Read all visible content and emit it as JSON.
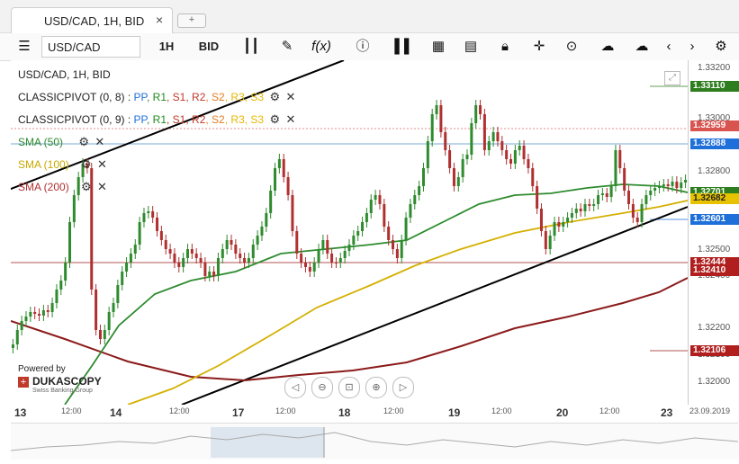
{
  "tab": {
    "title": "USD/CAD, 1H, BID",
    "close": "×",
    "add": "+"
  },
  "toolbar": {
    "symbol": "USD/CAD",
    "period": "1H",
    "side": "BID",
    "icons": [
      "menu-icon",
      "candles-icon",
      "pencil-icon",
      "fx-icon",
      "info-icon",
      "bars-icon",
      "calendar-icon",
      "calculator-icon",
      "lock-icon",
      "crosshair-icon",
      "zoom-icon",
      "upload-icon",
      "download-icon",
      "prev-icon",
      "next-icon",
      "settings-icon"
    ]
  },
  "legend": {
    "title": "USD/CAD, 1H, BID",
    "pivot1": {
      "label": "CLASSICPIVOT (0, 8)",
      "sep": ":"
    },
    "pivot2": {
      "label": "CLASSICPIVOT (0, 9)",
      "sep": ":"
    },
    "pivot_items": [
      {
        "text": "PP",
        "color": "#1e6fd9"
      },
      {
        "text": "R1",
        "color": "#1f8a1f"
      },
      {
        "text": "S1",
        "color": "#c0392b"
      },
      {
        "text": "R2",
        "color": "#c0392b"
      },
      {
        "text": "S2",
        "color": "#e67e22"
      },
      {
        "text": "R3",
        "color": "#e6b800"
      },
      {
        "text": "S3",
        "color": "#e6b800"
      }
    ],
    "sma50": {
      "label": "SMA (50)",
      "color": "#2e8b2e"
    },
    "sma100": {
      "label": "SMA (100)",
      "color": "#d4b000"
    },
    "sma200": {
      "label": "SMA (200)",
      "color": "#8b1a1a"
    }
  },
  "price_axis": {
    "ticks": [
      "1.33200",
      "1.33000",
      "1.32800",
      "1.32600",
      "1.32500",
      "1.32400",
      "1.32200",
      "1.32100",
      "1.32000"
    ],
    "labels": [
      {
        "value": "1.33110",
        "bg": "#2e7d1e",
        "fg": "#ffffff"
      },
      {
        "value": "1.32959",
        "bg": "#d9534f",
        "fg": "#ffffff"
      },
      {
        "value": "1.32888",
        "bg": "#1e6fd9",
        "fg": "#ffffff"
      },
      {
        "value": "1.32701",
        "bg": "#2e7d1e",
        "fg": "#ffffff"
      },
      {
        "value": "1.32682",
        "bg": "#e6c200",
        "fg": "#222222"
      },
      {
        "value": "1.32601",
        "bg": "#1e6fd9",
        "fg": "#ffffff"
      },
      {
        "value": "1.32444",
        "bg": "#b01e1e",
        "fg": "#ffffff"
      },
      {
        "value": "1.32410",
        "bg": "#b01e1e",
        "fg": "#ffffff"
      },
      {
        "value": "1.32106",
        "bg": "#b01e1e",
        "fg": "#ffffff"
      }
    ]
  },
  "time_axis": [
    "13",
    "12:00",
    "14",
    "12:00",
    "17",
    "12:00",
    "18",
    "12:00",
    "19",
    "12:00",
    "20",
    "12:00",
    "23",
    "23.09.2019"
  ],
  "branding": {
    "powered": "Powered by",
    "brand": "DUKASCOPY",
    "sub": "Swiss Banking Group"
  },
  "nav_buttons": [
    "◁",
    "⊖",
    "⊡",
    "⊕",
    "▷"
  ]
}
